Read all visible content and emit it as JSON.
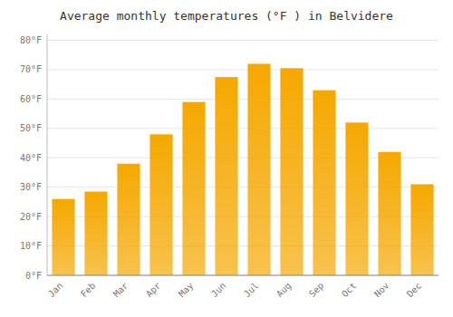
{
  "chart_data": {
    "type": "bar",
    "title": "Average monthly temperatures (°F ) in Belvidere",
    "categories": [
      "Jan",
      "Feb",
      "Mar",
      "Apr",
      "May",
      "Jun",
      "Jul",
      "Aug",
      "Sep",
      "Oct",
      "Nov",
      "Dec"
    ],
    "values": [
      26,
      28.5,
      38,
      48,
      59,
      67.5,
      72,
      70.5,
      63,
      52,
      42,
      31
    ],
    "color": "#F5A800",
    "ylim": [
      0,
      82
    ],
    "yticks": [
      {
        "value": 0,
        "label": "0°F"
      },
      {
        "value": 10,
        "label": "10°F"
      },
      {
        "value": 20,
        "label": "20°F"
      },
      {
        "value": 30,
        "label": "30°F"
      },
      {
        "value": 40,
        "label": "40°F"
      },
      {
        "value": 50,
        "label": "50°F"
      },
      {
        "value": 60,
        "label": "60°F"
      },
      {
        "value": 70,
        "label": "70°F"
      },
      {
        "value": 80,
        "label": "80°F"
      }
    ],
    "grid": true
  }
}
